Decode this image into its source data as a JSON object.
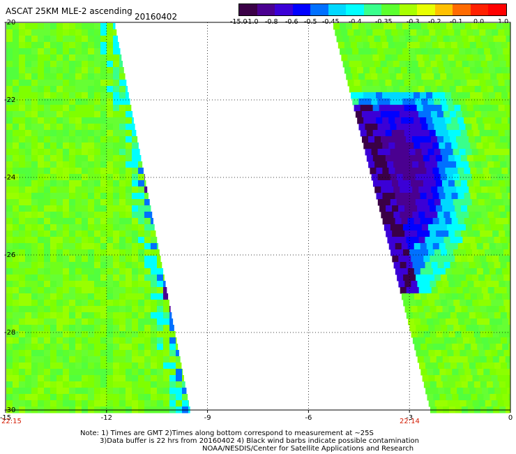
{
  "header": {
    "title": "ASCAT 25KM MLE-2 ascending",
    "date": "20160402"
  },
  "colorbar": {
    "colors": [
      "#3a0046",
      "#4a0090",
      "#3b00d6",
      "#0000ff",
      "#0070ff",
      "#00d8ff",
      "#00ffff",
      "#39ff8c",
      "#5cff2e",
      "#a8ff00",
      "#e8ff00",
      "#ffc000",
      "#ff6a00",
      "#ff2000",
      "#ff0000"
    ],
    "labels": [
      "-15.0",
      "-1.0",
      "-0.8",
      "-0.6",
      "-0.5",
      "-0.45",
      "-0.4",
      "-0.35",
      "-0.3",
      "-0.2",
      "-0.1",
      "0.0",
      "1.0"
    ]
  },
  "map": {
    "lon_ticks": [
      "-15",
      "-12",
      "-9",
      "-6",
      "-3",
      "0"
    ],
    "lat_ticks": [
      "-20",
      "-22",
      "-24",
      "-26",
      "-28",
      "-30"
    ],
    "time_left": "22:15",
    "time_right": "22:14"
  },
  "notes": {
    "line1": "Note: 1) Times are GMT 2)Times along bottom correspond to measurement at ~25S",
    "line2": "3)Data buffer is 22 hrs from 20160402 4) Black wind barbs indicate possible contamination",
    "line3": "NOAA/NESDIS/Center for Satellite Applications and Research"
  }
}
